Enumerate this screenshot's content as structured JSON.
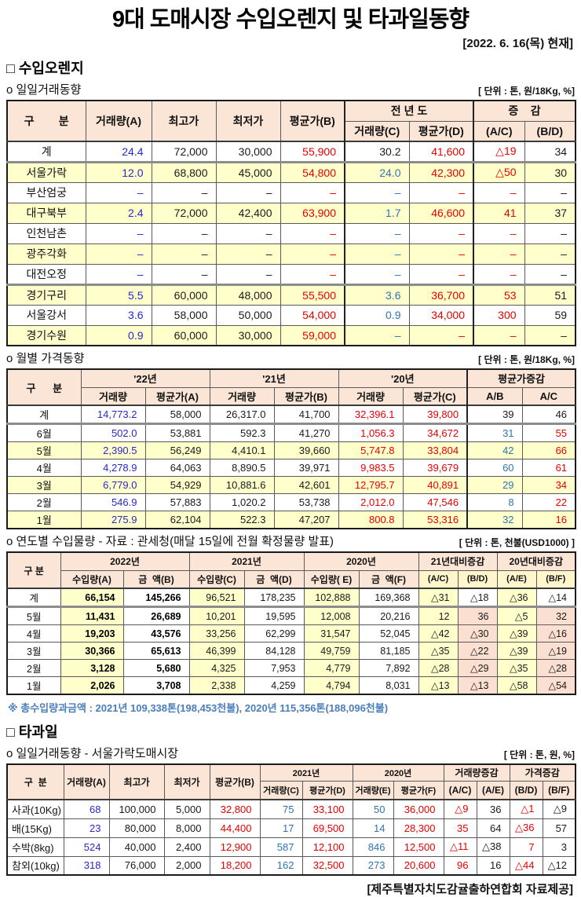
{
  "page": {
    "title": "9대 도매시장 수입오렌지 및 타과일동향",
    "date": "[2022. 6. 16(목) 현재]",
    "footer": "[제주특별자치도감귤출하연합회 자료제공]"
  },
  "sections": {
    "orange_heading": "□ 수입오렌지",
    "other_heading": "□ 타과일"
  },
  "colors": {
    "header_bg": "#fbe5d6",
    "row_yellow": "#ffffcc",
    "cell_peach": "#fbdfd0",
    "value_blue": "#2828c8",
    "value_light_blue": "#2e75b6",
    "value_red": "#e60000",
    "note_blue": "#4a7ebb"
  },
  "tables": {
    "t1": {
      "title": "o  일일거래동향",
      "unit": "[ 단위 : 톤, 원/18Kg, %]",
      "h1": [
        "구        분",
        "거래량(A)",
        "최고가",
        "최저가",
        "평균가(B)",
        "전 년 도",
        "증    감"
      ],
      "h2": [
        "거래량(C)",
        "평균가(D)",
        "(A/C)",
        "(B/D)"
      ],
      "colClass": [
        "blue",
        "black",
        "black",
        "red",
        "lblue",
        "red",
        "red",
        "black"
      ],
      "rows": [
        {
          "label": "계",
          "bg": "w",
          "sep": true,
          "ov": {
            "4": "black"
          },
          "cells": [
            "24.4",
            "72,000",
            "30,000",
            "55,900",
            "30.2",
            "41,600",
            "△19",
            "34"
          ]
        },
        {
          "label": "서울가락",
          "bg": "y",
          "cells": [
            "12.0",
            "68,800",
            "45,000",
            "54,800",
            "24.0",
            "42,300",
            "△50",
            "30"
          ]
        },
        {
          "label": "부산엄궁",
          "bg": "w",
          "cells": [
            "–",
            "–",
            "–",
            "–",
            "–",
            "–",
            "–",
            "–"
          ]
        },
        {
          "label": "대구북부",
          "bg": "y",
          "cells": [
            "2.4",
            "72,000",
            "42,400",
            "63,900",
            "1.7",
            "46,600",
            "41",
            "37"
          ]
        },
        {
          "label": "인천남촌",
          "bg": "w",
          "cells": [
            "–",
            "–",
            "–",
            "–",
            "–",
            "–",
            "–",
            "–"
          ]
        },
        {
          "label": "광주각화",
          "bg": "y",
          "cells": [
            "–",
            "–",
            "–",
            "–",
            "–",
            "–",
            "–",
            "–"
          ]
        },
        {
          "label": "대전오정",
          "bg": "w",
          "sep": true,
          "cells": [
            "–",
            "–",
            "–",
            "–",
            "–",
            "–",
            "–",
            "–"
          ]
        },
        {
          "label": "경기구리",
          "bg": "y",
          "cells": [
            "5.5",
            "60,000",
            "48,000",
            "55,500",
            "3.6",
            "36,700",
            "53",
            "51"
          ]
        },
        {
          "label": "서울강서",
          "bg": "w",
          "cells": [
            "3.6",
            "58,000",
            "50,000",
            "54,000",
            "0.9",
            "34,000",
            "300",
            "59"
          ]
        },
        {
          "label": "경기수원",
          "bg": "y",
          "cells": [
            "0.9",
            "60,000",
            "30,000",
            "59,000",
            "–",
            "–",
            "–",
            "–"
          ]
        }
      ]
    },
    "t2": {
      "title": "o  월별 가격동향",
      "unit": "[ 단위 : 톤, 원/18Kg, %]",
      "h1": [
        "구      분",
        "'22년",
        "'21년",
        "'20년",
        "평균가증감"
      ],
      "h2": [
        "거래량",
        "평균가(A)",
        "거래량",
        "평균가(B)",
        "거래량",
        "평균가(C)",
        "A/B",
        "A/C"
      ],
      "colClass": [
        "blue",
        "black dot",
        "black",
        "black dot",
        "red",
        "red dot",
        "lblue",
        "red dot"
      ],
      "rows": [
        {
          "label": "계",
          "bg": "w",
          "sep": true,
          "ov": {
            "6": "black",
            "7": "black dot"
          },
          "cells": [
            "14,773.2",
            "58,000",
            "26,317.0",
            "41,700",
            "32,396.1",
            "39,800",
            "39",
            "46"
          ]
        },
        {
          "label": "6월",
          "bg": "w",
          "cells": [
            "502.0",
            "53,881",
            "592.3",
            "41,270",
            "1,056.3",
            "34,672",
            "31",
            "55"
          ]
        },
        {
          "label": "5월",
          "bg": "y",
          "cells": [
            "2,390.5",
            "56,249",
            "4,410.1",
            "39,660",
            "5,747.8",
            "33,804",
            "42",
            "66"
          ]
        },
        {
          "label": "4월",
          "bg": "w",
          "cells": [
            "4,278.9",
            "64,063",
            "8,890.5",
            "39,971",
            "9,983.5",
            "39,679",
            "60",
            "61"
          ]
        },
        {
          "label": "3월",
          "bg": "y",
          "cells": [
            "6,779.0",
            "54,929",
            "10,881.6",
            "42,601",
            "12,795.7",
            "40,891",
            "29",
            "34"
          ]
        },
        {
          "label": "2월",
          "bg": "w",
          "cells": [
            "546.9",
            "57,883",
            "1,020.2",
            "53,738",
            "2,012.0",
            "47,546",
            "8",
            "22"
          ]
        },
        {
          "label": "1월",
          "bg": "y",
          "cells": [
            "275.9",
            "62,104",
            "522.3",
            "47,207",
            "800.8",
            "53,316",
            "32",
            "16"
          ]
        }
      ]
    },
    "t3": {
      "title": "o  연도별 수입물량 - 자료 : 관세청(매달 15일에 전월 확정물량 발표)",
      "unit": "[ 단위 : 톤, 천불(USD1000) ]",
      "note": "※ 총수입량과금액 : 2021년 109,338톤(198,453천불),  2020년 115,356톤(188,096천불)",
      "h1": [
        "구 분",
        "2022년",
        "2021년",
        "2020년",
        "21년대비증감",
        "20년대비증감"
      ],
      "h2": [
        "수입량(A)",
        "금  액(B)",
        "수입량(C)",
        "금  액(D)",
        "수입량( E)",
        "금  액(F)",
        "(A/C)",
        "(B/D)",
        "(A/E)",
        "(B/F)"
      ],
      "colClass": [
        "b",
        "b",
        "black",
        "black",
        "black",
        "black",
        "black",
        "black",
        "black",
        "black"
      ],
      "colBg": [
        "y",
        "w",
        "y",
        "w",
        "y",
        "w",
        "y",
        "p",
        "y",
        "p"
      ],
      "rows": [
        {
          "label": "계",
          "sep": true,
          "ovbg": {
            "7": "w",
            "9": "w"
          },
          "cells": [
            "66,154",
            "145,266",
            "96,521",
            "178,235",
            "102,888",
            "169,368",
            "△31",
            "△18",
            "△36",
            "△14"
          ]
        },
        {
          "label": "5월",
          "cells": [
            "11,431",
            "26,689",
            "10,201",
            "19,595",
            "12,008",
            "20,216",
            "12",
            "36",
            "△5",
            "32"
          ]
        },
        {
          "label": "4월",
          "cells": [
            "19,203",
            "43,576",
            "33,256",
            "62,299",
            "31,547",
            "52,045",
            "△42",
            "△30",
            "△39",
            "△16"
          ]
        },
        {
          "label": "3월",
          "cells": [
            "30,366",
            "65,613",
            "46,399",
            "84,128",
            "49,759",
            "81,185",
            "△35",
            "△22",
            "△39",
            "△19"
          ]
        },
        {
          "label": "2월",
          "cells": [
            "3,128",
            "5,680",
            "4,325",
            "7,953",
            "4,779",
            "7,892",
            "△28",
            "△29",
            "△35",
            "△28"
          ]
        },
        {
          "label": "1월",
          "cells": [
            "2,026",
            "3,708",
            "2,338",
            "4,259",
            "4,794",
            "8,031",
            "△13",
            "△13",
            "△58",
            "△54"
          ]
        }
      ]
    },
    "t4": {
      "title": "o  일일거래동향 - 서울가락도매시장",
      "unit": "[ 단위 : 톤, 원, %]",
      "h1": [
        "구  분",
        "거래량(A)",
        "최고가",
        "최저가",
        "평균가(B)",
        "2021년",
        "2020년",
        "거래량증감",
        "가격증감"
      ],
      "h2": [
        "거래량(C)",
        "평균가(D)",
        "거래량(E)",
        "평균가(F)",
        "(A/C)",
        "(A/E)",
        "(B/D)",
        "(B/F)"
      ],
      "colClass": [
        "blue",
        "black",
        "black",
        "red",
        "lblue",
        "red",
        "lblue",
        "red",
        "red",
        "black",
        "red",
        "black"
      ],
      "rows": [
        {
          "label": "사과(10Kg)",
          "cells": [
            "68",
            "100,000",
            "5,000",
            "32,800",
            "75",
            "33,100",
            "50",
            "36,000",
            "△9",
            "36",
            "△1",
            "△9"
          ]
        },
        {
          "label": "배(15Kg)",
          "cells": [
            "23",
            "80,000",
            "8,000",
            "44,400",
            "17",
            "69,500",
            "14",
            "28,300",
            "35",
            "64",
            "△36",
            "57"
          ]
        },
        {
          "label": "수박(8kg)",
          "cells": [
            "524",
            "40,000",
            "2,400",
            "12,900",
            "587",
            "12,100",
            "846",
            "12,500",
            "△11",
            "△38",
            "7",
            "3"
          ]
        },
        {
          "label": "참외(10kg)",
          "cells": [
            "318",
            "76,000",
            "2,000",
            "18,200",
            "162",
            "32,500",
            "273",
            "20,600",
            "96",
            "16",
            "△44",
            "△12"
          ]
        }
      ]
    }
  }
}
